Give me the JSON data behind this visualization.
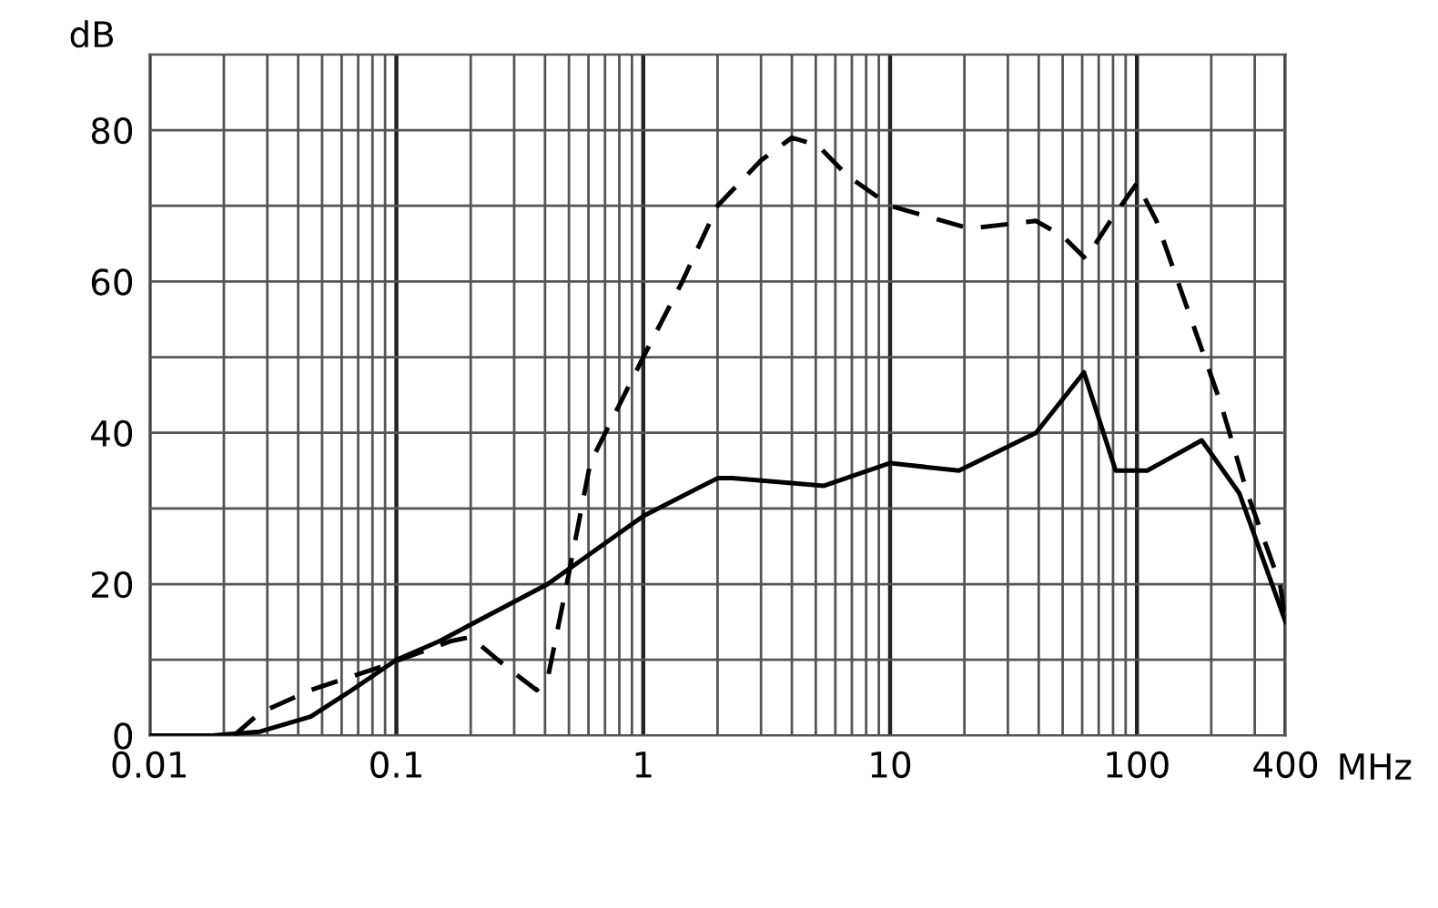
{
  "chart_data": {
    "type": "line",
    "xlabel": "MHz",
    "ylabel": "dB",
    "log": "x",
    "grid": true,
    "marker": "none",
    "xlim": [
      0.01,
      400
    ],
    "ylim": [
      0,
      90
    ],
    "xticks": [
      0.01,
      {
        "value": 0.02,
        "label": null
      },
      {
        "value": 0.03,
        "label": null
      },
      {
        "value": 0.04,
        "label": null
      },
      {
        "value": 0.05,
        "label": null
      },
      {
        "value": 0.06,
        "label": null
      },
      {
        "value": 0.07,
        "label": null
      },
      {
        "value": 0.08,
        "label": null
      },
      {
        "value": 0.09,
        "label": null
      },
      0.1,
      {
        "value": 0.2,
        "label": null
      },
      {
        "value": 0.3,
        "label": null
      },
      {
        "value": 0.4,
        "label": null
      },
      {
        "value": 0.5,
        "label": null
      },
      {
        "value": 0.6,
        "label": null
      },
      {
        "value": 0.7,
        "label": null
      },
      {
        "value": 0.8,
        "label": null
      },
      {
        "value": 0.9,
        "label": null
      },
      1,
      {
        "value": 2,
        "label": null
      },
      {
        "value": 3,
        "label": null
      },
      {
        "value": 4,
        "label": null
      },
      {
        "value": 5,
        "label": null
      },
      {
        "value": 6,
        "label": null
      },
      {
        "value": 7,
        "label": null
      },
      {
        "value": 8,
        "label": null
      },
      {
        "value": 9,
        "label": null
      },
      10,
      {
        "value": 20,
        "label": null
      },
      {
        "value": 30,
        "label": null
      },
      {
        "value": 40,
        "label": null
      },
      {
        "value": 50,
        "label": null
      },
      {
        "value": 60,
        "label": null
      },
      {
        "value": 70,
        "label": null
      },
      {
        "value": 80,
        "label": null
      },
      {
        "value": 90,
        "label": null
      },
      100,
      {
        "value": 200,
        "label": null
      },
      {
        "value": 300,
        "label": null
      },
      400
    ],
    "yticks": [
      0,
      {
        "value": 10,
        "label": null
      },
      20,
      {
        "value": 30,
        "label": null
      },
      40,
      {
        "value": 50,
        "label": null
      },
      60,
      {
        "value": 70,
        "label": null
      },
      80,
      {
        "value": 90,
        "label": null
      }
    ],
    "series": [
      {
        "color": "#000000",
        "line_style": "dashed",
        "x": [
          0.022,
          0.028,
          0.045,
          0.085,
          0.167,
          0.2,
          0.28,
          0.37,
          0.41,
          0.49,
          0.61,
          1.0,
          1.44,
          2.0,
          3.0,
          4.0,
          5.1,
          6.7,
          10,
          21,
          39,
          50,
          62,
          78,
          100,
          120,
          170,
          218,
          280,
          380,
          400
        ],
        "values": [
          0,
          3,
          6,
          9,
          12.5,
          13,
          9,
          6,
          7.5,
          20,
          36,
          50,
          60,
          70,
          76,
          79,
          78,
          74,
          70,
          67,
          68,
          66,
          63,
          68,
          73,
          68,
          54,
          44,
          32,
          20,
          15
        ]
      },
      {
        "color": "#000000",
        "line_style": "solid",
        "x": [
          0.01,
          0.018,
          0.028,
          0.045,
          0.066,
          0.1,
          0.15,
          0.41,
          1.0,
          2.0,
          2.3,
          5.4,
          10,
          19,
          39,
          61,
          82,
          110,
          183,
          260,
          400
        ],
        "values": [
          0,
          0,
          0.5,
          2.5,
          6,
          10,
          12.5,
          20,
          29,
          34,
          34,
          33,
          36,
          35,
          40,
          48,
          35,
          35,
          39,
          32,
          15
        ]
      }
    ]
  }
}
